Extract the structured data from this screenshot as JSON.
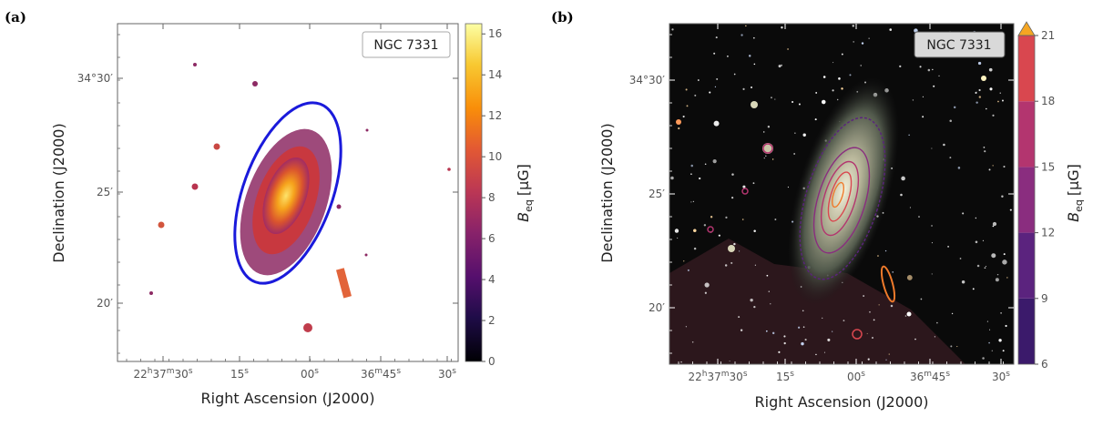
{
  "chart_data": [
    {
      "panel": "(a)",
      "type": "heatmap",
      "object_label": "NGC 7331",
      "xlabel": "Right Ascension (J2000)",
      "ylabel": "Declination (J2000)",
      "x_ticks": [
        {
          "label": "22",
          "sup1": "h",
          "mid": "37",
          "sup2": "m",
          "tail": "30",
          "sup3": "s"
        },
        {
          "label": "15",
          "sup3": "s"
        },
        {
          "label": "00",
          "sup3": "s"
        },
        {
          "label": "36",
          "sup2": "m",
          "tail": "45",
          "sup3": "s"
        },
        {
          "label": "30",
          "sup3": "s"
        }
      ],
      "y_ticks": [
        {
          "label": "34°30′"
        },
        {
          "label": "25′"
        },
        {
          "label": "20′"
        }
      ],
      "colorbar": {
        "label": "B",
        "label_sub": "eq",
        "label_unit": "[μG]",
        "ticks": [
          0,
          2,
          4,
          6,
          8,
          10,
          12,
          14,
          16
        ],
        "range": [
          0,
          16.5
        ],
        "colormap": "inferno-like"
      },
      "ellipse_color": "#1a1adb"
    },
    {
      "panel": "(b)",
      "type": "heatmap",
      "object_label": "NGC 7331",
      "xlabel": "Right Ascension (J2000)",
      "ylabel": "Declination (J2000)",
      "x_ticks": [
        {
          "label": "22",
          "sup1": "h",
          "mid": "37",
          "sup2": "m",
          "tail": "30",
          "sup3": "s"
        },
        {
          "label": "15",
          "sup3": "s"
        },
        {
          "label": "00",
          "sup3": "s"
        },
        {
          "label": "36",
          "sup2": "m",
          "tail": "45",
          "sup3": "s"
        },
        {
          "label": "30",
          "sup3": "s"
        }
      ],
      "y_ticks": [
        {
          "label": "34°30′"
        },
        {
          "label": "25′"
        },
        {
          "label": "20′"
        }
      ],
      "colorbar": {
        "label": "B",
        "label_sub": "eq",
        "label_unit": "[μG]",
        "ticks": [
          6,
          9,
          12,
          15,
          18,
          21
        ],
        "range": [
          6,
          21
        ],
        "extend": "max",
        "band_colors": [
          "#3b1a6b",
          "#5b237e",
          "#8a2d7f",
          "#b3356f",
          "#d9474f",
          "#ef7a2b"
        ],
        "extend_color": "#f5a623"
      }
    }
  ]
}
